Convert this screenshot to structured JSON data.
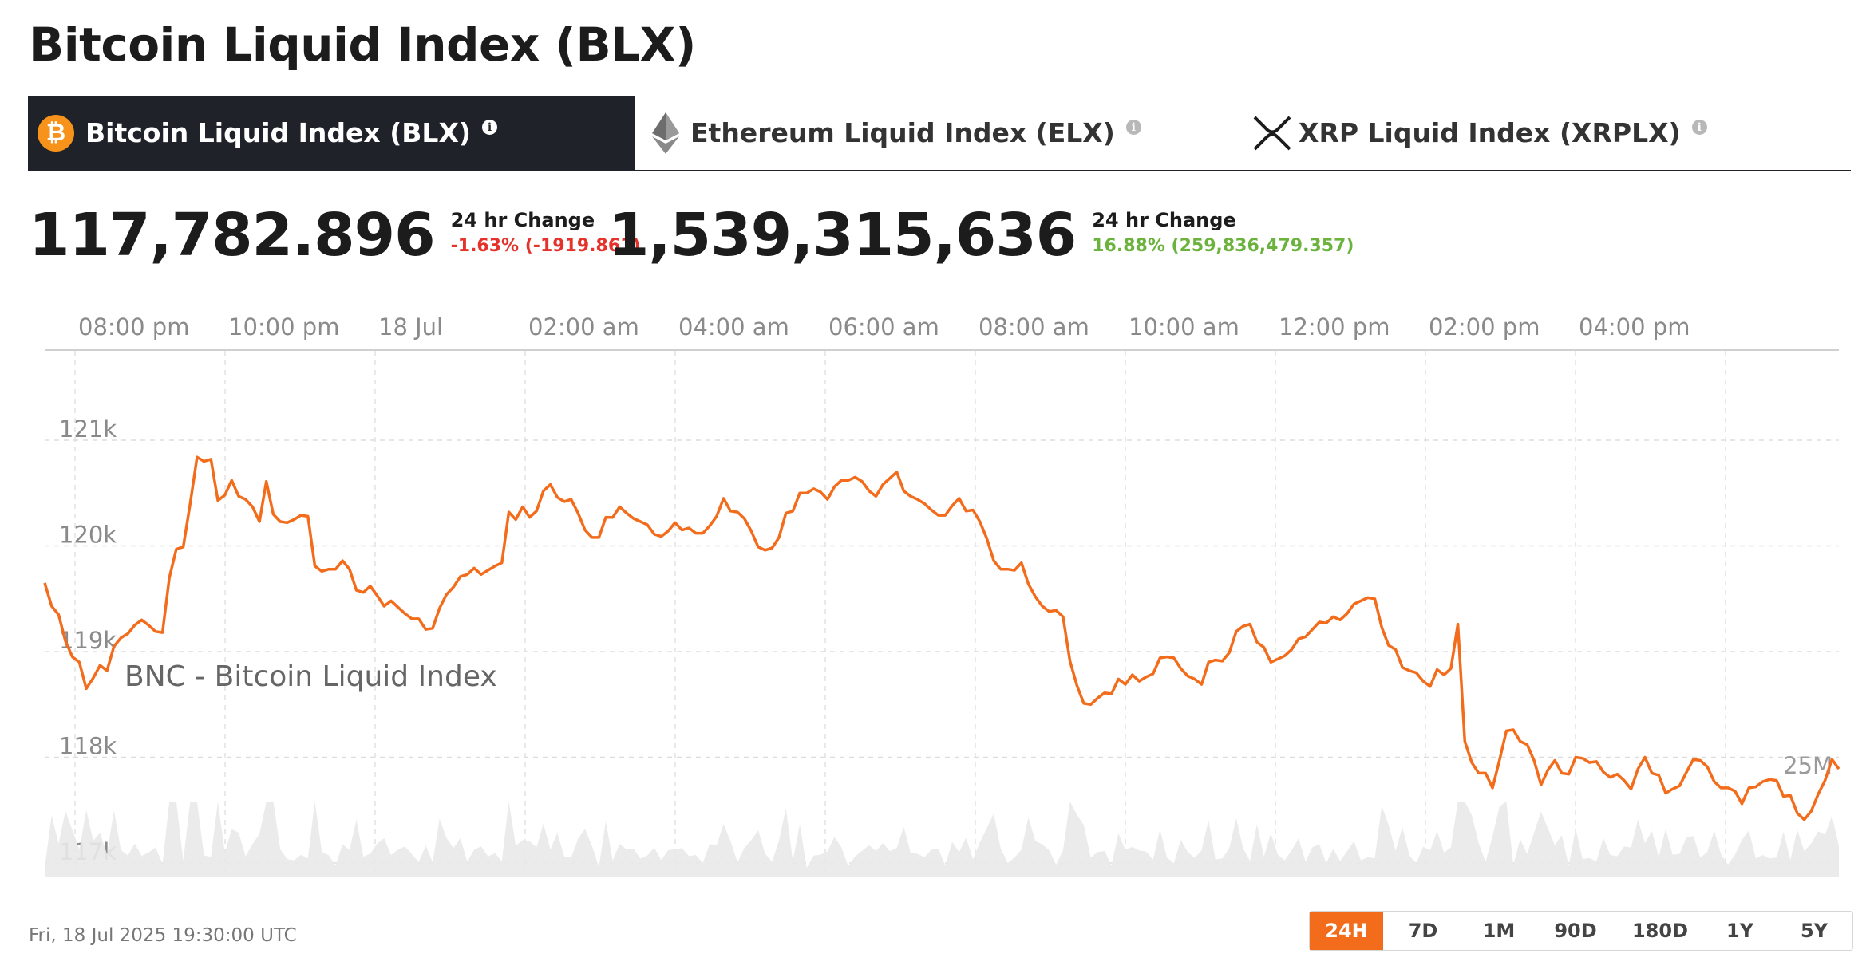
{
  "header": {
    "title": "Bitcoin Liquid Index (BLX)"
  },
  "tabs": [
    {
      "label": "Bitcoin Liquid Index (BLX)",
      "icon": "bitcoin-icon",
      "info": "i",
      "active": true
    },
    {
      "label": "Ethereum Liquid Index (ELX)",
      "icon": "ethereum-icon",
      "info": "i",
      "active": false
    },
    {
      "label": "XRP Liquid Index (XRPLX)",
      "icon": "xrp-icon",
      "info": "i",
      "active": false
    }
  ],
  "price": {
    "value": "117,782.896",
    "change_label": "24 hr Change",
    "change": "-1.63% (-1919.861)"
  },
  "volume": {
    "value": "1,539,315,636",
    "change_label": "24 hr Change",
    "change": "16.88% (259,836,479.357)"
  },
  "chart_data": {
    "type": "line",
    "series_label": "BNC - Bitcoin Liquid Index",
    "x_ticks": [
      "08:00 pm",
      "10:00 pm",
      "18 Jul",
      "02:00 am",
      "04:00 am",
      "06:00 am",
      "08:00 am",
      "10:00 am",
      "12:00 pm",
      "02:00 pm",
      "04:00 pm"
    ],
    "y_ticks": [
      "117k",
      "118k",
      "119k",
      "120k",
      "121k"
    ],
    "ylim": [
      116900,
      121800
    ],
    "volume_label": "25M",
    "price": [
      119650,
      119430,
      119350,
      119100,
      118950,
      118900,
      118650,
      118750,
      118870,
      118820,
      119050,
      119130,
      119170,
      119250,
      119300,
      119250,
      119190,
      119180,
      119700,
      119970,
      119990,
      120400,
      120840,
      120800,
      120820,
      120430,
      120480,
      120620,
      120470,
      120440,
      120370,
      120230,
      120610,
      120300,
      120230,
      120220,
      120250,
      120290,
      120280,
      119810,
      119760,
      119780,
      119780,
      119860,
      119780,
      119580,
      119560,
      119620,
      119530,
      119430,
      119480,
      119420,
      119360,
      119310,
      119310,
      119210,
      119220,
      119410,
      119540,
      119610,
      119710,
      119730,
      119790,
      119730,
      119770,
      119810,
      119840,
      120320,
      120250,
      120370,
      120270,
      120330,
      120520,
      120580,
      120460,
      120420,
      120440,
      120310,
      120150,
      120080,
      120080,
      120270,
      120270,
      120370,
      120310,
      120260,
      120230,
      120200,
      120110,
      120090,
      120140,
      120220,
      120150,
      120170,
      120120,
      120120,
      120190,
      120280,
      120450,
      120330,
      120320,
      120260,
      120140,
      119990,
      119960,
      119980,
      120080,
      120310,
      120330,
      120500,
      120500,
      120540,
      120510,
      120440,
      120560,
      120620,
      120620,
      120650,
      120610,
      120520,
      120470,
      120580,
      120640,
      120700,
      120520,
      120470,
      120440,
      120400,
      120340,
      120290,
      120290,
      120380,
      120450,
      120330,
      120340,
      120230,
      120070,
      119860,
      119780,
      119780,
      119770,
      119840,
      119640,
      119520,
      119430,
      119380,
      119390,
      119330,
      118910,
      118680,
      118510,
      118500,
      118560,
      118610,
      118600,
      118740,
      118690,
      118780,
      118720,
      118760,
      118790,
      118940,
      118950,
      118940,
      118840,
      118770,
      118740,
      118690,
      118900,
      118920,
      118910,
      118990,
      119190,
      119240,
      119260,
      119090,
      119040,
      118900,
      118930,
      118960,
      119020,
      119120,
      119140,
      119210,
      119280,
      119270,
      119330,
      119300,
      119360,
      119450,
      119480,
      119510,
      119500,
      119230,
      119060,
      119020,
      118850,
      118820,
      118800,
      118720,
      118670,
      118830,
      118780,
      118840,
      119260,
      118150,
      117950,
      117850,
      117850,
      117710,
      117970,
      118250,
      118260,
      118150,
      118120,
      117970,
      117740,
      117880,
      117970,
      117850,
      117840,
      118000,
      117990,
      117950,
      117960,
      117860,
      117810,
      117840,
      117780,
      117700,
      117890,
      118000,
      117850,
      117830,
      117660,
      117700,
      117730,
      117860,
      117980,
      117970,
      117910,
      117770,
      117710,
      117710,
      117680,
      117560,
      117710,
      117720,
      117770,
      117790,
      117780,
      117630,
      117640,
      117470,
      117410,
      117490,
      117650,
      117780,
      117980,
      117890
    ]
  },
  "footer": {
    "timestamp": "Fri, 18 Jul 2025 19:30:00 UTC",
    "ranges": [
      "24H",
      "7D",
      "1M",
      "90D",
      "180D",
      "1Y",
      "5Y"
    ],
    "active_range": "24H"
  }
}
